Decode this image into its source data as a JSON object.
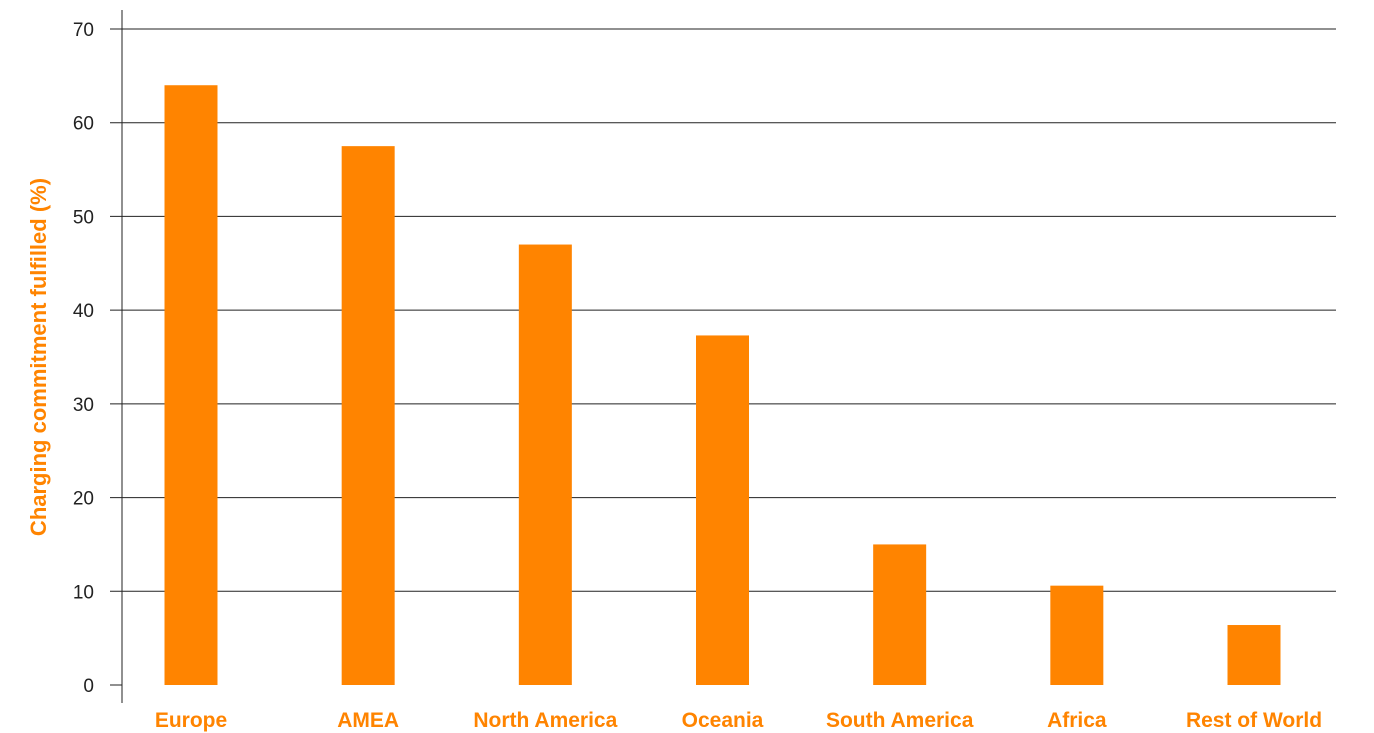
{
  "chart_data": {
    "type": "bar",
    "categories": [
      "Europe",
      "AMEA",
      "North America",
      "Oceania",
      "South America",
      "Africa",
      "Rest of World"
    ],
    "values": [
      64,
      57.5,
      47,
      37.3,
      15,
      10.6,
      6.4
    ],
    "title": "",
    "xlabel": "",
    "ylabel": "Charging commitment fulfilled (%)",
    "ylim": [
      0,
      70
    ],
    "yticks": [
      0,
      10,
      20,
      30,
      40,
      50,
      60,
      70
    ],
    "grid": true,
    "legend": "none"
  },
  "colors": {
    "bar": "#ff8400",
    "accent_text": "#ff8400",
    "grid": "#222222",
    "tick_text": "#222222"
  }
}
